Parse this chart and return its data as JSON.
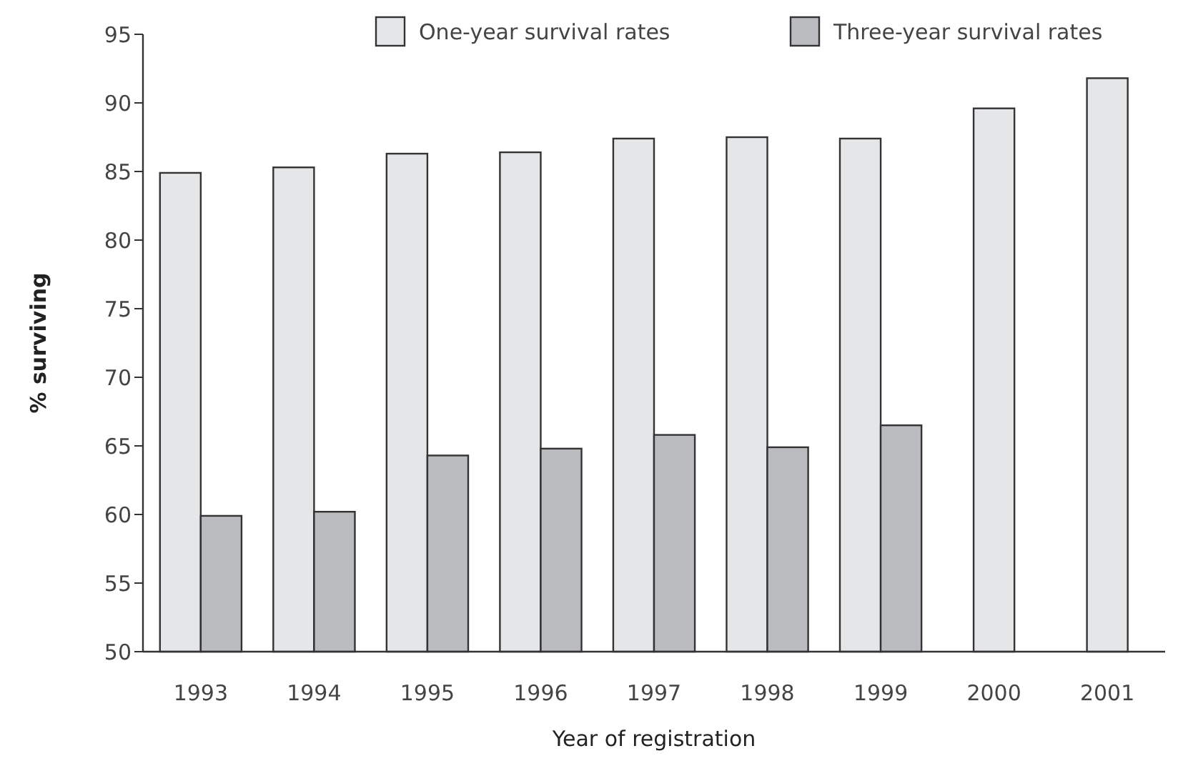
{
  "chart_data": {
    "type": "bar",
    "xlabel": "Year of registration",
    "ylabel": "% surviving",
    "categories": [
      "1993",
      "1994",
      "1995",
      "1996",
      "1997",
      "1998",
      "1999",
      "2000",
      "2001"
    ],
    "series": [
      {
        "name": "One-year survival rates",
        "color": "#e5e6e8",
        "values": [
          84.9,
          85.3,
          86.3,
          86.4,
          87.4,
          87.5,
          87.4,
          89.6,
          91.8
        ]
      },
      {
        "name": "Three-year survival rates",
        "color": "#bbbcbf",
        "values": [
          59.9,
          60.2,
          64.3,
          64.8,
          65.8,
          64.9,
          66.5,
          null,
          null
        ]
      }
    ],
    "ylim": [
      50,
      95
    ],
    "yticks": [
      50,
      55,
      60,
      65,
      70,
      75,
      80,
      85,
      90,
      95
    ],
    "grid": false,
    "legend": "top"
  }
}
